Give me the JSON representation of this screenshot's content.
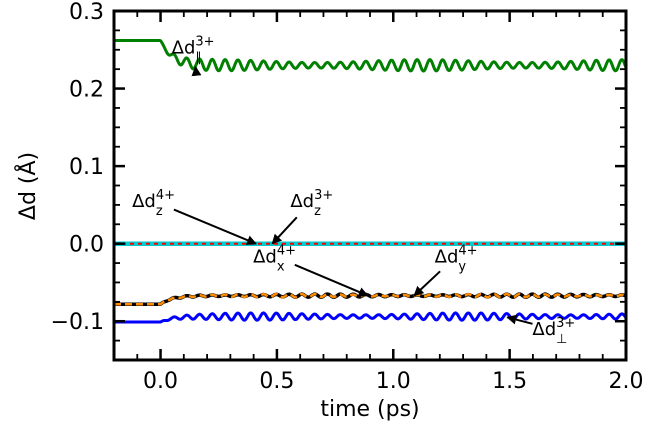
{
  "chart_data": {
    "type": "line",
    "xlabel": "time (ps)",
    "ylabel": "Δd (Å)",
    "xlim": [
      -0.2,
      2.0
    ],
    "ylim": [
      -0.15,
      0.3
    ],
    "x_ticks": [
      {
        "value": 0.0,
        "label": "0.0"
      },
      {
        "value": 0.5,
        "label": "0.5"
      },
      {
        "value": 1.0,
        "label": "1.0"
      },
      {
        "value": 1.5,
        "label": "1.5"
      },
      {
        "value": 2.0,
        "label": "2.0"
      }
    ],
    "y_ticks": [
      {
        "value": -0.1,
        "label": "−0.1"
      },
      {
        "value": 0.0,
        "label": "0.0"
      },
      {
        "value": 0.1,
        "label": "0.1"
      },
      {
        "value": 0.2,
        "label": "0.2"
      },
      {
        "value": 0.3,
        "label": "0.3"
      }
    ],
    "x_minor_step": 0.1,
    "y_minor_step": 0.025,
    "grid": false,
    "legend": "none",
    "series": [
      {
        "name": "Δd∥3+",
        "color": "#008000",
        "width": 3,
        "dash": "",
        "y0": 0.262,
        "y_final": 0.23,
        "amplitude": 0.0055,
        "period": 0.055
      },
      {
        "name": "Δdz4+",
        "color": "#00ced1",
        "width": 4.5,
        "dash": "",
        "y0": 0.0,
        "y_final": 0.0,
        "amplitude": 0.0,
        "period": 0.055
      },
      {
        "name": "Δdz3+",
        "color": "#ff0000",
        "width": 2,
        "dash": "4,4",
        "y0": 0.0,
        "y_final": 0.0,
        "amplitude": 0.0,
        "period": 0.055
      },
      {
        "name": "Δdx4+",
        "color": "#000000",
        "width": 3.5,
        "dash": "",
        "y0": -0.078,
        "y_final": -0.067,
        "amplitude": 0.0015,
        "period": 0.055
      },
      {
        "name": "Δdy4+",
        "color": "#ff8c00",
        "width": 2.5,
        "dash": "7,4",
        "y0": -0.078,
        "y_final": -0.067,
        "amplitude": 0.0015,
        "period": 0.055
      },
      {
        "name": "Δd⊥3+",
        "color": "#0000ff",
        "width": 3,
        "dash": "",
        "y0": -0.101,
        "y_final": -0.094,
        "amplitude": 0.0035,
        "period": 0.055
      }
    ],
    "annotations": [
      {
        "base": "Δd",
        "sup": "3+",
        "sub": "∥",
        "text_x": 0.14,
        "text_y": 0.245,
        "arrow_to": [
          0.15,
          0.228
        ]
      },
      {
        "base": "Δd",
        "sup": "4+",
        "sub": "z",
        "text_x": -0.03,
        "text_y": 0.047,
        "arrow_to": [
          0.41,
          0.0
        ]
      },
      {
        "base": "Δd",
        "sup": "3+",
        "sub": "z",
        "text_x": 0.65,
        "text_y": 0.047,
        "arrow_to": [
          0.48,
          0.0
        ]
      },
      {
        "base": "Δd",
        "sup": "4+",
        "sub": "x",
        "text_x": 0.49,
        "text_y": -0.024,
        "arrow_to": [
          0.89,
          -0.067
        ]
      },
      {
        "base": "Δd",
        "sup": "4+",
        "sub": "y",
        "text_x": 1.27,
        "text_y": -0.024,
        "arrow_to": [
          1.09,
          -0.067
        ]
      },
      {
        "base": "Δd",
        "sup": "3+",
        "sub": "⊥",
        "text_x": 1.69,
        "text_y": -0.118,
        "arrow_to": [
          1.49,
          -0.095
        ]
      }
    ]
  }
}
